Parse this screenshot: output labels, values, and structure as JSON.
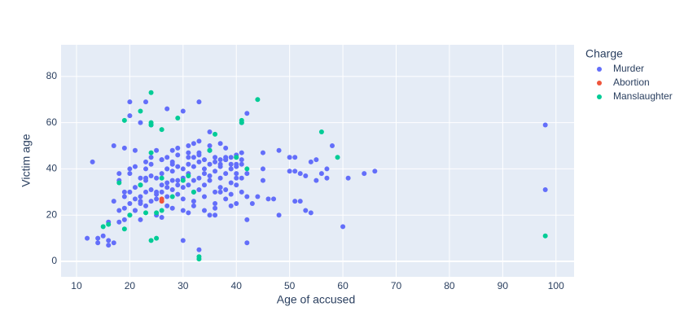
{
  "chart_data": {
    "type": "scatter",
    "x_label": "Age of accused",
    "y_label": "Victim age",
    "legend_title": "Charge",
    "xlim": [
      7.1,
      103.4
    ],
    "ylim": [
      -6.7,
      93.7
    ],
    "xticks": [
      10,
      20,
      30,
      40,
      50,
      60,
      70,
      80,
      90,
      100
    ],
    "yticks": [
      0,
      20,
      40,
      60,
      80
    ],
    "grid": true,
    "legend_position": "right",
    "series": [
      {
        "name": "Murder",
        "color": "#636efa",
        "x": [
          98,
          98,
          60,
          66,
          64,
          61,
          58,
          57,
          56,
          57,
          55,
          54,
          55,
          53,
          54,
          52,
          51,
          51,
          52,
          53,
          50,
          51,
          50,
          48,
          48,
          46,
          47,
          45,
          45,
          45,
          43,
          44,
          42,
          42,
          42,
          41,
          41,
          40,
          39,
          38,
          37,
          36,
          35,
          33,
          30,
          33,
          30,
          20,
          23,
          20,
          24,
          22,
          25,
          21,
          17,
          19,
          13,
          12,
          14,
          14,
          15,
          16,
          16,
          17,
          16,
          18,
          19,
          27,
          20,
          21,
          22,
          23,
          24,
          25,
          26,
          27,
          28,
          29,
          30,
          31,
          32,
          33,
          34,
          35,
          36,
          37,
          38,
          39,
          40,
          41,
          20,
          21,
          22,
          23,
          24,
          25,
          26,
          27,
          28,
          29,
          30,
          31,
          32,
          33,
          34,
          35,
          36,
          37,
          38,
          39,
          40,
          41,
          19,
          21,
          22,
          23,
          24,
          25,
          26,
          27,
          28,
          29,
          30,
          31,
          32,
          33,
          34,
          35,
          36,
          37,
          38,
          39,
          40,
          42,
          18,
          20,
          22,
          23,
          24,
          26,
          27,
          28,
          29,
          31,
          32,
          33,
          34,
          35,
          36,
          37,
          38,
          39,
          40,
          41,
          17,
          19,
          21,
          22,
          25,
          26,
          27,
          28,
          30,
          31,
          32,
          34,
          35,
          36,
          38,
          39,
          40,
          42,
          18,
          20,
          21,
          23,
          24,
          26,
          28,
          29,
          31,
          32,
          33,
          35,
          37,
          38,
          40,
          41,
          19,
          22,
          25,
          27,
          29,
          30,
          32,
          34,
          36,
          39,
          18,
          20,
          23,
          27,
          28,
          31,
          33,
          35,
          37,
          40
        ],
        "y": [
          59,
          31,
          15,
          39,
          38,
          36,
          50,
          40,
          38,
          36,
          35,
          43,
          44,
          22,
          21,
          26,
          26,
          39,
          38,
          37,
          45,
          45,
          39,
          48,
          20,
          27,
          27,
          47,
          40,
          35,
          25,
          28,
          64,
          8,
          18,
          60,
          44,
          42,
          45,
          45,
          30,
          20,
          56,
          69,
          65,
          5,
          9,
          69,
          69,
          63,
          59,
          60,
          48,
          48,
          50,
          49,
          43,
          10,
          8,
          10,
          11,
          7,
          9,
          8,
          17,
          17,
          18,
          66,
          20,
          22,
          25,
          24,
          26,
          27,
          30,
          28,
          31,
          29,
          32,
          33,
          30,
          31,
          33,
          35,
          30,
          32,
          31,
          34,
          33,
          30,
          25,
          27,
          28,
          30,
          31,
          29,
          33,
          34,
          35,
          33,
          36,
          38,
          35,
          36,
          38,
          37,
          39,
          36,
          38,
          40,
          38,
          36,
          30,
          32,
          33,
          35,
          37,
          36,
          38,
          40,
          39,
          41,
          40,
          42,
          41,
          43,
          40,
          42,
          43,
          41,
          44,
          42,
          41,
          38,
          35,
          38,
          36,
          40,
          42,
          44,
          45,
          43,
          46,
          47,
          45,
          46,
          44,
          48,
          45,
          42,
          44,
          40,
          45,
          42,
          26,
          23,
          22,
          18,
          20,
          19,
          24,
          23,
          22,
          21,
          24,
          22,
          20,
          23,
          27,
          24,
          25,
          28,
          38,
          40,
          41,
          43,
          45,
          44,
          48,
          49,
          50,
          51,
          52,
          50,
          51,
          49,
          46,
          47,
          28,
          26,
          30,
          32,
          35,
          27,
          26,
          28,
          25,
          29,
          22,
          30,
          36,
          40,
          42,
          45,
          47,
          48,
          44,
          36
        ]
      },
      {
        "name": "Abortion",
        "color": "#ef553b",
        "x": [
          26,
          26
        ],
        "y": [
          26,
          27
        ]
      },
      {
        "name": "Manslaughter",
        "color": "#00cc96",
        "x": [
          98,
          44,
          24,
          22,
          19,
          24,
          24,
          26,
          29,
          41,
          41,
          36,
          56,
          59,
          40,
          35,
          42,
          24,
          31,
          18,
          22,
          16,
          15,
          19,
          24,
          25,
          33,
          33,
          23,
          25,
          26,
          28,
          26,
          30,
          32,
          20
        ],
        "y": [
          11,
          70,
          73,
          65,
          61,
          60,
          59,
          57,
          62,
          61,
          60,
          55,
          56,
          45,
          45,
          48,
          40,
          47,
          37,
          34,
          33,
          16,
          15,
          14,
          9,
          10,
          2,
          1,
          21,
          21,
          22,
          28,
          36,
          35,
          30,
          20
        ]
      }
    ]
  }
}
